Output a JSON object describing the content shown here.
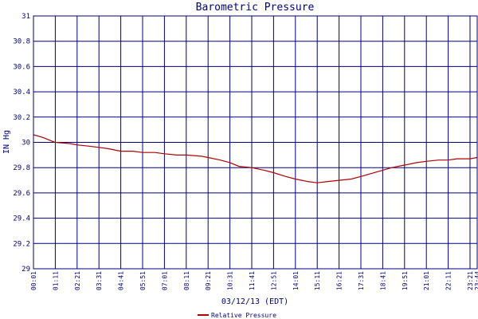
{
  "chart_data": {
    "type": "line",
    "title": "Barometric Pressure",
    "xlabel": "03/12/13 (EDT)",
    "ylabel": "IN Hg",
    "ylim": [
      29,
      31
    ],
    "yticks": [
      29,
      29.2,
      29.4,
      29.6,
      29.8,
      30,
      30.2,
      30.4,
      30.6,
      30.8,
      31
    ],
    "ytick_labels": [
      "29",
      "29.2",
      "29.4",
      "29.6",
      "29.8",
      "30",
      "30.2",
      "30.4",
      "30.6",
      "30.8",
      "31"
    ],
    "xtick_labels": [
      "00:01",
      "01:11",
      "02:21",
      "03:31",
      "04:41",
      "05:51",
      "07:01",
      "08:11",
      "09:21",
      "10:31",
      "11:41",
      "12:51",
      "14:01",
      "15:11",
      "16:21",
      "17:31",
      "18:41",
      "19:51",
      "21:01",
      "22:11",
      "23:21",
      "23:44"
    ],
    "grid": true,
    "legend_position": "bottom-center",
    "colors": {
      "plot_bg": "#ffffff",
      "grid": "#000080",
      "frame": "#000080",
      "line": "#b00000",
      "text": "#000080"
    },
    "series": [
      {
        "name": "Relative Pressure",
        "x": [
          "00:01",
          "00:30",
          "01:00",
          "01:11",
          "02:00",
          "02:21",
          "03:00",
          "03:31",
          "04:00",
          "04:41",
          "05:20",
          "05:51",
          "06:30",
          "07:01",
          "07:40",
          "08:11",
          "09:00",
          "09:21",
          "10:00",
          "10:31",
          "11:00",
          "11:41",
          "12:20",
          "12:51",
          "13:30",
          "14:01",
          "14:40",
          "15:11",
          "15:45",
          "16:21",
          "17:00",
          "17:31",
          "18:00",
          "18:41",
          "19:10",
          "19:51",
          "20:30",
          "21:01",
          "21:40",
          "22:11",
          "22:40",
          "23:21",
          "23:44"
        ],
        "values": [
          30.06,
          30.04,
          30.01,
          30.0,
          29.99,
          29.98,
          29.97,
          29.96,
          29.95,
          29.93,
          29.93,
          29.92,
          29.92,
          29.91,
          29.9,
          29.9,
          29.89,
          29.88,
          29.86,
          29.84,
          29.81,
          29.8,
          29.78,
          29.76,
          29.73,
          29.71,
          29.69,
          29.68,
          29.69,
          29.7,
          29.71,
          29.73,
          29.75,
          29.78,
          29.8,
          29.82,
          29.84,
          29.85,
          29.86,
          29.86,
          29.87,
          29.87,
          29.88
        ]
      }
    ]
  }
}
